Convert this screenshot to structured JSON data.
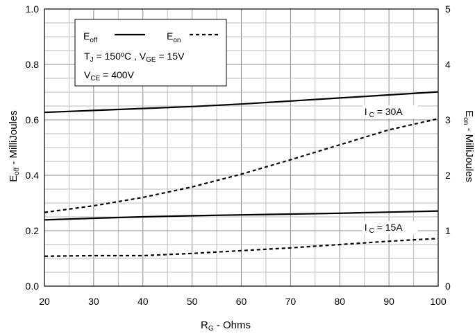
{
  "chart_data": {
    "type": "line",
    "x_axis": {
      "label_main": "R",
      "label_sub": "G",
      "label_rest": " - Ohms",
      "min": 20,
      "max": 100,
      "ticks": [
        20,
        30,
        40,
        50,
        60,
        70,
        80,
        90,
        100
      ],
      "minor_step": 5
    },
    "y_left": {
      "label_main": "E",
      "label_sub": "off",
      "label_rest": " - MilliJoules",
      "min": 0,
      "max": 1.0,
      "ticks": [
        "0.0",
        "0.2",
        "0.4",
        "0.6",
        "0.8",
        "1.0"
      ],
      "minor_step": 0.05
    },
    "y_right": {
      "label_main": "E",
      "label_sub": "on",
      "label_rest": " - MilliJoules",
      "min": 0,
      "max": 5,
      "ticks": [
        "0",
        "1",
        "2",
        "3",
        "4",
        "5"
      ]
    },
    "legend": {
      "position": "top-left",
      "entries": [
        {
          "main": "E",
          "sub": "off",
          "style": "solid"
        },
        {
          "main": "E",
          "sub": "on",
          "style": "dashed"
        }
      ],
      "cond1": {
        "a_main": "T",
        "a_sub": "J",
        "a_rest": " = 150ºC ,  ",
        "b_main": "V",
        "b_sub": "GE",
        "b_rest": " = 15V"
      },
      "cond2": {
        "main": "V",
        "sub": "CE",
        "rest": " = 400V"
      }
    },
    "annotations": [
      {
        "main": "I",
        "sub": "C",
        "rest": " = 30A",
        "x": 85,
        "y_left": 0.617
      },
      {
        "main": "I",
        "sub": "C",
        "rest": " = 15A",
        "x": 85,
        "y_left": 0.2
      }
    ],
    "series": [
      {
        "axis": "left",
        "style": "solid",
        "x": [
          20,
          30,
          40,
          50,
          60,
          70,
          80,
          90,
          100
        ],
        "y": [
          0.627,
          0.634,
          0.641,
          0.648,
          0.657,
          0.668,
          0.679,
          0.69,
          0.701
        ]
      },
      {
        "axis": "right",
        "style": "dashed",
        "x": [
          20,
          30,
          40,
          50,
          60,
          70,
          80,
          90,
          100
        ],
        "y": [
          1.33,
          1.45,
          1.6,
          1.79,
          2.02,
          2.28,
          2.55,
          2.82,
          3.02
        ]
      },
      {
        "axis": "left",
        "style": "solid",
        "x": [
          20,
          30,
          40,
          50,
          60,
          70,
          80,
          90,
          100
        ],
        "y": [
          0.239,
          0.245,
          0.25,
          0.254,
          0.257,
          0.26,
          0.263,
          0.267,
          0.271
        ]
      },
      {
        "axis": "right",
        "style": "dashed",
        "x": [
          20,
          30,
          40,
          50,
          60,
          70,
          80,
          90,
          100
        ],
        "y": [
          0.54,
          0.55,
          0.55,
          0.59,
          0.64,
          0.69,
          0.75,
          0.81,
          0.86
        ]
      }
    ]
  }
}
